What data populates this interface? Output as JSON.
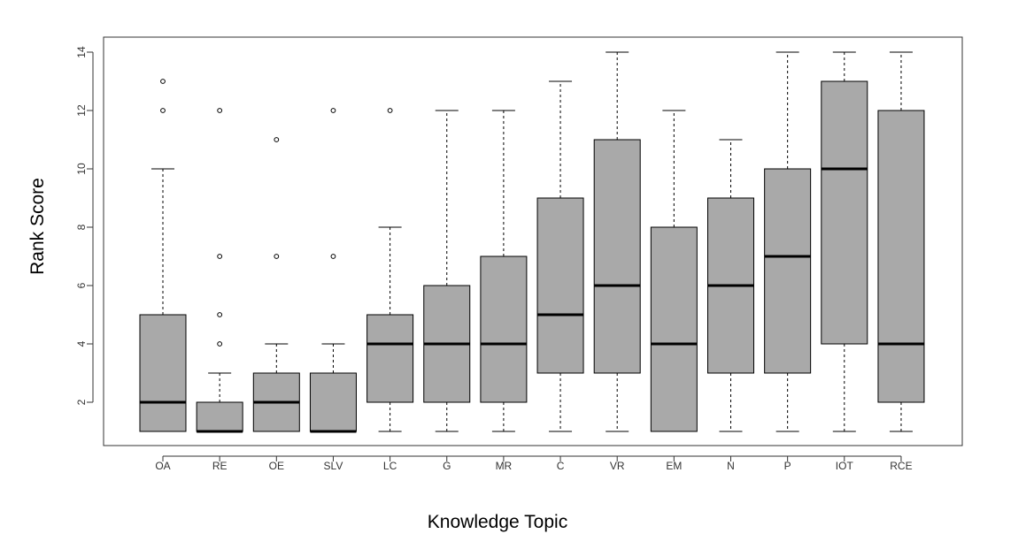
{
  "chart_data": {
    "type": "boxplot",
    "title": "",
    "xlabel": "Knowledge Topic",
    "ylabel": "Rank Score",
    "ylim": [
      0.5,
      14.5
    ],
    "yticks": [
      2,
      4,
      6,
      8,
      10,
      12,
      14
    ],
    "grid": false,
    "box_color": "#a9a9a9",
    "categories": [
      "OA",
      "RE",
      "OE",
      "SLV",
      "LC",
      "G",
      "MR",
      "C",
      "VR",
      "EM",
      "N",
      "P",
      "IOT",
      "RCE"
    ],
    "boxes": [
      {
        "category": "OA",
        "min": 1,
        "q1": 1,
        "median": 2,
        "q3": 5,
        "max": 10,
        "outliers": [
          12,
          13
        ]
      },
      {
        "category": "RE",
        "min": 1,
        "q1": 1,
        "median": 1,
        "q3": 2,
        "max": 3,
        "outliers": [
          4,
          5,
          7,
          12
        ]
      },
      {
        "category": "OE",
        "min": 1,
        "q1": 1,
        "median": 2,
        "q3": 3,
        "max": 4,
        "outliers": [
          7,
          11
        ]
      },
      {
        "category": "SLV",
        "min": 1,
        "q1": 1,
        "median": 1,
        "q3": 3,
        "max": 4,
        "outliers": [
          7,
          12
        ]
      },
      {
        "category": "LC",
        "min": 1,
        "q1": 2,
        "median": 4,
        "q3": 5,
        "max": 8,
        "outliers": [
          12
        ]
      },
      {
        "category": "G",
        "min": 1,
        "q1": 2,
        "median": 4,
        "q3": 6,
        "max": 12,
        "outliers": []
      },
      {
        "category": "MR",
        "min": 1,
        "q1": 2,
        "median": 4,
        "q3": 7,
        "max": 12,
        "outliers": []
      },
      {
        "category": "C",
        "min": 1,
        "q1": 3,
        "median": 5,
        "q3": 9,
        "max": 13,
        "outliers": []
      },
      {
        "category": "VR",
        "min": 1,
        "q1": 3,
        "median": 6,
        "q3": 11,
        "max": 14,
        "outliers": []
      },
      {
        "category": "EM",
        "min": 1,
        "q1": 1,
        "median": 4,
        "q3": 8,
        "max": 12,
        "outliers": []
      },
      {
        "category": "N",
        "min": 1,
        "q1": 3,
        "median": 6,
        "q3": 9,
        "max": 11,
        "outliers": []
      },
      {
        "category": "P",
        "min": 1,
        "q1": 3,
        "median": 7,
        "q3": 10,
        "max": 14,
        "outliers": []
      },
      {
        "category": "IOT",
        "min": 1,
        "q1": 4,
        "median": 10,
        "q3": 13,
        "max": 14,
        "outliers": []
      },
      {
        "category": "RCE",
        "min": 1,
        "q1": 2,
        "median": 4,
        "q3": 12,
        "max": 14,
        "outliers": []
      }
    ]
  }
}
